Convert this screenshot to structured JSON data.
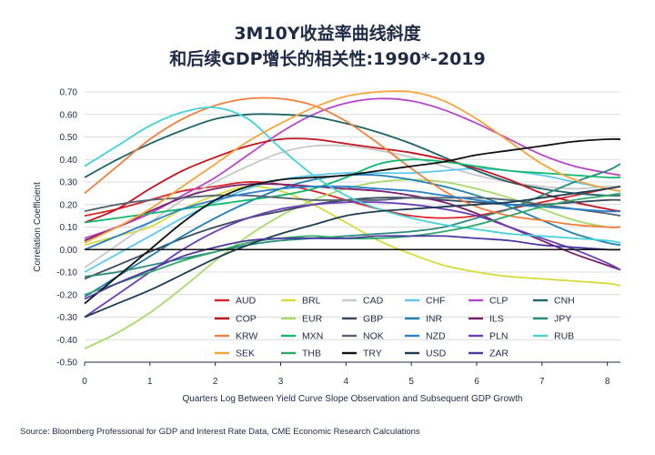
{
  "chart_data": {
    "type": "line",
    "title": "3M10Y收益率曲线斜度",
    "subtitle": "和后续GDP增长的相关性:1990*-2019",
    "xlabel": "Quarters Log Between Yield Curve Slope Observation and Subsequent GDP Growth",
    "ylabel": "Correlation Coefficient",
    "xlim": [
      0,
      8.2
    ],
    "ylim": [
      -0.5,
      0.7
    ],
    "x_ticks": [
      "0",
      "1",
      "2",
      "3",
      "4",
      "5",
      "6",
      "7",
      "8"
    ],
    "y_ticks": [
      "0.70",
      "0.60",
      "0.50",
      "0.40",
      "0.30",
      "0.20",
      "0.10",
      "0.00",
      "-0.10",
      "-0.20",
      "-0.30",
      "-0.40",
      "-0.50"
    ],
    "grid": "horizontal",
    "legend_position": "bottom-center",
    "x": [
      0,
      0.5,
      1,
      1.5,
      2,
      2.5,
      3,
      3.5,
      4,
      4.5,
      5,
      5.5,
      6,
      6.5,
      7,
      7.5,
      8,
      8.2
    ],
    "series": [
      {
        "name": "AUD",
        "color": "#d9252a",
        "values": [
          0.15,
          0.18,
          0.22,
          0.26,
          0.28,
          0.3,
          0.29,
          0.26,
          0.22,
          0.18,
          0.15,
          0.14,
          0.15,
          0.18,
          0.21,
          0.24,
          0.27,
          0.28
        ]
      },
      {
        "name": "BRL",
        "color": "#d6db3a",
        "values": [
          0.02,
          0.06,
          0.1,
          0.18,
          0.24,
          0.28,
          0.26,
          0.2,
          0.12,
          0.04,
          -0.02,
          -0.07,
          -0.1,
          -0.12,
          -0.13,
          -0.14,
          -0.15,
          -0.16
        ]
      },
      {
        "name": "CAD",
        "color": "#c8c8c8",
        "values": [
          -0.08,
          0.02,
          0.12,
          0.22,
          0.3,
          0.37,
          0.43,
          0.46,
          0.46,
          0.44,
          0.41,
          0.37,
          0.33,
          0.3,
          0.28,
          0.27,
          0.28,
          0.28
        ]
      },
      {
        "name": "CHF",
        "color": "#5cc8f0",
        "values": [
          -0.1,
          -0.02,
          0.06,
          0.14,
          0.21,
          0.27,
          0.31,
          0.33,
          0.34,
          0.34,
          0.34,
          0.35,
          0.36,
          0.35,
          0.33,
          0.3,
          0.27,
          0.26
        ]
      },
      {
        "name": "CLP",
        "color": "#b845c9",
        "values": [
          0.05,
          0.1,
          0.16,
          0.24,
          0.32,
          0.42,
          0.52,
          0.6,
          0.65,
          0.67,
          0.66,
          0.62,
          0.56,
          0.49,
          0.42,
          0.37,
          0.34,
          0.33
        ]
      },
      {
        "name": "CNH",
        "color": "#1e6468",
        "values": [
          0.32,
          0.4,
          0.47,
          0.53,
          0.58,
          0.6,
          0.6,
          0.59,
          0.56,
          0.52,
          0.47,
          0.41,
          0.35,
          0.3,
          0.27,
          0.25,
          0.24,
          0.24
        ]
      },
      {
        "name": "COP",
        "color": "#c1121f",
        "values": [
          0.12,
          0.18,
          0.27,
          0.35,
          0.41,
          0.46,
          0.49,
          0.49,
          0.47,
          0.45,
          0.43,
          0.4,
          0.36,
          0.31,
          0.25,
          0.21,
          0.18,
          0.17
        ]
      },
      {
        "name": "EUR",
        "color": "#a8d96b",
        "values": [
          -0.44,
          -0.37,
          -0.28,
          -0.17,
          -0.05,
          0.06,
          0.15,
          0.22,
          0.27,
          0.3,
          0.31,
          0.3,
          0.27,
          0.23,
          0.18,
          0.13,
          0.1,
          0.1
        ]
      },
      {
        "name": "GBP",
        "color": "#3b4a5e",
        "values": [
          -0.13,
          -0.07,
          -0.01,
          0.05,
          0.1,
          0.14,
          0.17,
          0.2,
          0.22,
          0.23,
          0.23,
          0.22,
          0.21,
          0.2,
          0.2,
          0.21,
          0.22,
          0.22
        ]
      },
      {
        "name": "INR",
        "color": "#1e7fb0",
        "values": [
          -0.21,
          -0.12,
          -0.03,
          0.06,
          0.14,
          0.21,
          0.27,
          0.31,
          0.33,
          0.33,
          0.31,
          0.28,
          0.24,
          0.19,
          0.13,
          0.07,
          0.03,
          0.02
        ]
      },
      {
        "name": "ILS",
        "color": "#7a1f6b",
        "values": [
          0.04,
          0.1,
          0.17,
          0.23,
          0.27,
          0.29,
          0.29,
          0.28,
          0.27,
          0.26,
          0.24,
          0.21,
          0.16,
          0.1,
          0.04,
          -0.02,
          -0.07,
          -0.09
        ]
      },
      {
        "name": "JPY",
        "color": "#2a8a7e",
        "values": [
          -0.12,
          -0.1,
          -0.07,
          -0.04,
          -0.01,
          0.02,
          0.04,
          0.05,
          0.06,
          0.07,
          0.08,
          0.1,
          0.14,
          0.18,
          0.24,
          0.3,
          0.35,
          0.38
        ]
      },
      {
        "name": "KRW",
        "color": "#f07f3c",
        "values": [
          0.25,
          0.37,
          0.49,
          0.58,
          0.64,
          0.67,
          0.67,
          0.64,
          0.57,
          0.47,
          0.36,
          0.26,
          0.19,
          0.15,
          0.13,
          0.11,
          0.1,
          0.1
        ]
      },
      {
        "name": "MXN",
        "color": "#12b96f",
        "values": [
          0.12,
          0.14,
          0.16,
          0.18,
          0.2,
          0.22,
          0.24,
          0.27,
          0.32,
          0.38,
          0.4,
          0.39,
          0.37,
          0.35,
          0.34,
          0.33,
          0.32,
          0.32
        ]
      },
      {
        "name": "NOK",
        "color": "#556270",
        "values": [
          0.17,
          0.2,
          0.22,
          0.23,
          0.24,
          0.24,
          0.23,
          0.22,
          0.22,
          0.22,
          0.23,
          0.23,
          0.23,
          0.22,
          0.2,
          0.18,
          0.16,
          0.15
        ]
      },
      {
        "name": "NZD",
        "color": "#2a7fc9",
        "values": [
          0.0,
          0.06,
          0.12,
          0.18,
          0.22,
          0.25,
          0.27,
          0.28,
          0.28,
          0.27,
          0.26,
          0.24,
          0.22,
          0.2,
          0.19,
          0.18,
          0.17,
          0.17
        ]
      },
      {
        "name": "PLN",
        "color": "#6a3fb5",
        "values": [
          -0.3,
          -0.2,
          -0.1,
          0.0,
          0.08,
          0.14,
          0.18,
          0.2,
          0.21,
          0.21,
          0.2,
          0.18,
          0.15,
          0.1,
          0.05,
          0.0,
          -0.06,
          -0.09
        ]
      },
      {
        "name": "RUB",
        "color": "#45d1d8",
        "values": [
          0.37,
          0.46,
          0.55,
          0.61,
          0.63,
          0.58,
          0.45,
          0.33,
          0.24,
          0.18,
          0.14,
          0.11,
          0.09,
          0.07,
          0.06,
          0.05,
          0.04,
          0.03
        ]
      },
      {
        "name": "SEK",
        "color": "#f5a43c",
        "values": [
          0.03,
          0.1,
          0.18,
          0.28,
          0.38,
          0.48,
          0.56,
          0.63,
          0.68,
          0.7,
          0.7,
          0.66,
          0.58,
          0.48,
          0.38,
          0.31,
          0.27,
          0.26
        ]
      },
      {
        "name": "THB",
        "color": "#2fa86a",
        "values": [
          -0.2,
          -0.15,
          -0.1,
          -0.05,
          -0.01,
          0.03,
          0.05,
          0.06,
          0.05,
          0.05,
          0.06,
          0.08,
          0.11,
          0.15,
          0.19,
          0.22,
          0.24,
          0.25
        ]
      },
      {
        "name": "TRY",
        "color": "#111111",
        "values": [
          -0.24,
          -0.12,
          0.0,
          0.12,
          0.22,
          0.28,
          0.31,
          0.32,
          0.33,
          0.35,
          0.37,
          0.39,
          0.42,
          0.44,
          0.46,
          0.48,
          0.49,
          0.49
        ]
      },
      {
        "name": "USD",
        "color": "#1d3c52",
        "values": [
          -0.3,
          -0.24,
          -0.18,
          -0.11,
          -0.04,
          0.02,
          0.07,
          0.11,
          0.15,
          0.17,
          0.18,
          0.19,
          0.2,
          0.21,
          0.23,
          0.25,
          0.27,
          0.28
        ]
      },
      {
        "name": "ZAR",
        "color": "#4b3a9e",
        "values": [
          -0.22,
          -0.15,
          -0.09,
          -0.03,
          0.01,
          0.04,
          0.05,
          0.05,
          0.05,
          0.06,
          0.06,
          0.06,
          0.05,
          0.04,
          0.02,
          0.01,
          0.0,
          0.0
        ]
      }
    ]
  },
  "footer": {
    "source": "Source: Bloomberg Professional for GDP and Interest Rate Data, CME Economic Research Calculations"
  }
}
